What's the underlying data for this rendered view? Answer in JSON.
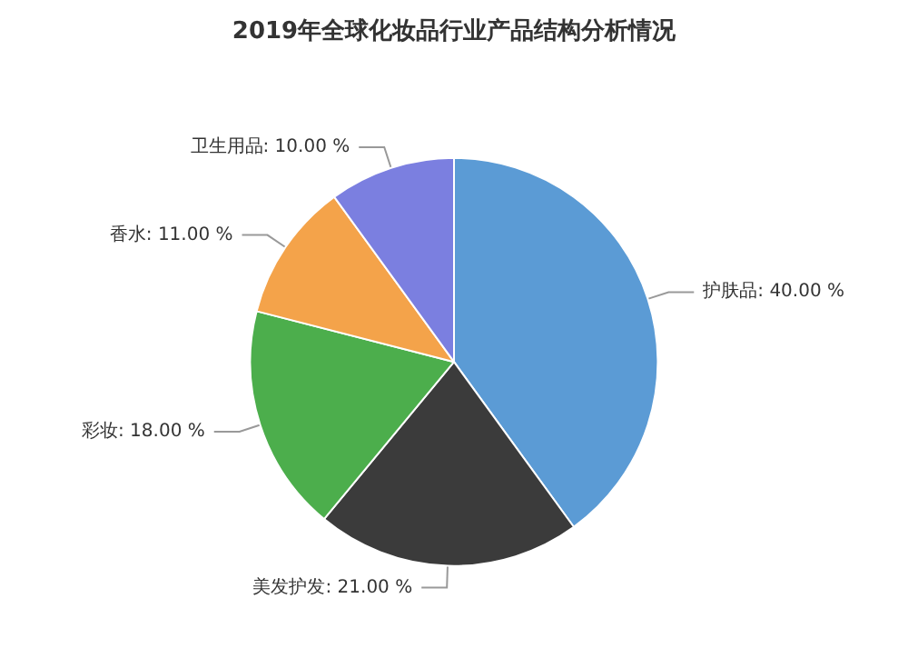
{
  "chart_data": {
    "type": "pie",
    "title": "2019年全球化妆品行业产品结构分析情况",
    "categories": [
      "护肤品",
      "美发护发",
      "彩妆",
      "香水",
      "卫生用品"
    ],
    "values": [
      40,
      21,
      18,
      11,
      10
    ],
    "value_labels": [
      "40.00 %",
      "21.00 %",
      "18.00 %",
      "11.00 %",
      "10.00 %"
    ],
    "colors": [
      "#5b9bd5",
      "#3b3b3b",
      "#4cae4c",
      "#f4a34a",
      "#7b7fe0"
    ]
  }
}
